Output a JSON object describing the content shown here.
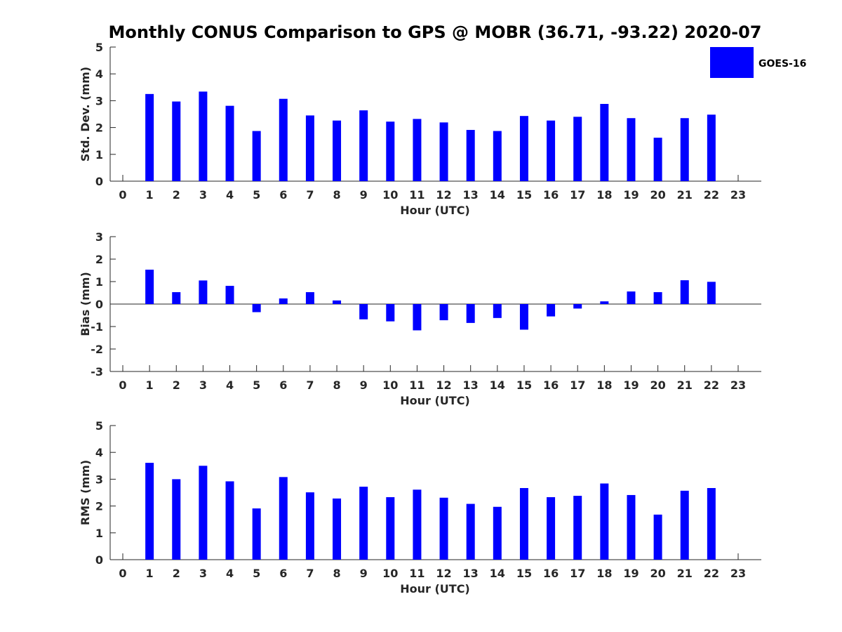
{
  "title": "Monthly CONUS Comparison to GPS @ MOBR (36.71, -93.22) 2020-07",
  "legend": {
    "label": "GOES-16",
    "color": "#0000ff"
  },
  "bar_color": "#0000ff",
  "chart_data": [
    {
      "type": "bar",
      "id": "std",
      "ylabel": "Std. Dev. (mm)",
      "xlabel": "Hour (UTC)",
      "ylim": [
        0,
        5
      ],
      "yticks": [
        "0",
        "1",
        "2",
        "3",
        "4",
        "5"
      ],
      "categories": [
        "0",
        "1",
        "2",
        "3",
        "4",
        "5",
        "6",
        "7",
        "8",
        "9",
        "10",
        "11",
        "12",
        "13",
        "14",
        "15",
        "16",
        "17",
        "18",
        "19",
        "20",
        "21",
        "22",
        "23"
      ],
      "series": [
        {
          "name": "GOES-16",
          "values": [
            null,
            3.25,
            2.97,
            3.34,
            2.81,
            1.87,
            3.07,
            2.45,
            2.26,
            2.64,
            2.22,
            2.32,
            2.19,
            1.91,
            1.87,
            2.43,
            2.26,
            2.4,
            2.88,
            2.35,
            1.62,
            2.35,
            2.48,
            null
          ]
        }
      ]
    },
    {
      "type": "bar",
      "id": "bias",
      "ylabel": "Bias (mm)",
      "xlabel": "Hour (UTC)",
      "ylim": [
        -3,
        3
      ],
      "yticks": [
        "-3",
        "-2",
        "-1",
        "0",
        "1",
        "2",
        "3"
      ],
      "categories": [
        "0",
        "1",
        "2",
        "3",
        "4",
        "5",
        "6",
        "7",
        "8",
        "9",
        "10",
        "11",
        "12",
        "13",
        "14",
        "15",
        "16",
        "17",
        "18",
        "19",
        "20",
        "21",
        "22",
        "23"
      ],
      "zero_line": true,
      "series": [
        {
          "name": "GOES-16",
          "values": [
            null,
            1.53,
            0.53,
            1.05,
            0.81,
            -0.36,
            0.25,
            0.53,
            0.16,
            -0.68,
            -0.77,
            -1.17,
            -0.72,
            -0.84,
            -0.62,
            -1.14,
            -0.55,
            -0.2,
            0.12,
            0.56,
            0.53,
            1.06,
            0.99,
            null
          ]
        }
      ]
    },
    {
      "type": "bar",
      "id": "rms",
      "ylabel": "RMS (mm)",
      "xlabel": "Hour (UTC)",
      "ylim": [
        0,
        5
      ],
      "yticks": [
        "0",
        "1",
        "2",
        "3",
        "4",
        "5"
      ],
      "categories": [
        "0",
        "1",
        "2",
        "3",
        "4",
        "5",
        "6",
        "7",
        "8",
        "9",
        "10",
        "11",
        "12",
        "13",
        "14",
        "15",
        "16",
        "17",
        "18",
        "19",
        "20",
        "21",
        "22",
        "23"
      ],
      "series": [
        {
          "name": "GOES-16",
          "values": [
            null,
            3.61,
            3.0,
            3.5,
            2.92,
            1.91,
            3.08,
            2.51,
            2.28,
            2.72,
            2.33,
            2.61,
            2.31,
            2.08,
            1.97,
            2.67,
            2.33,
            2.38,
            2.84,
            2.41,
            1.68,
            2.57,
            2.67,
            null
          ]
        }
      ]
    }
  ]
}
